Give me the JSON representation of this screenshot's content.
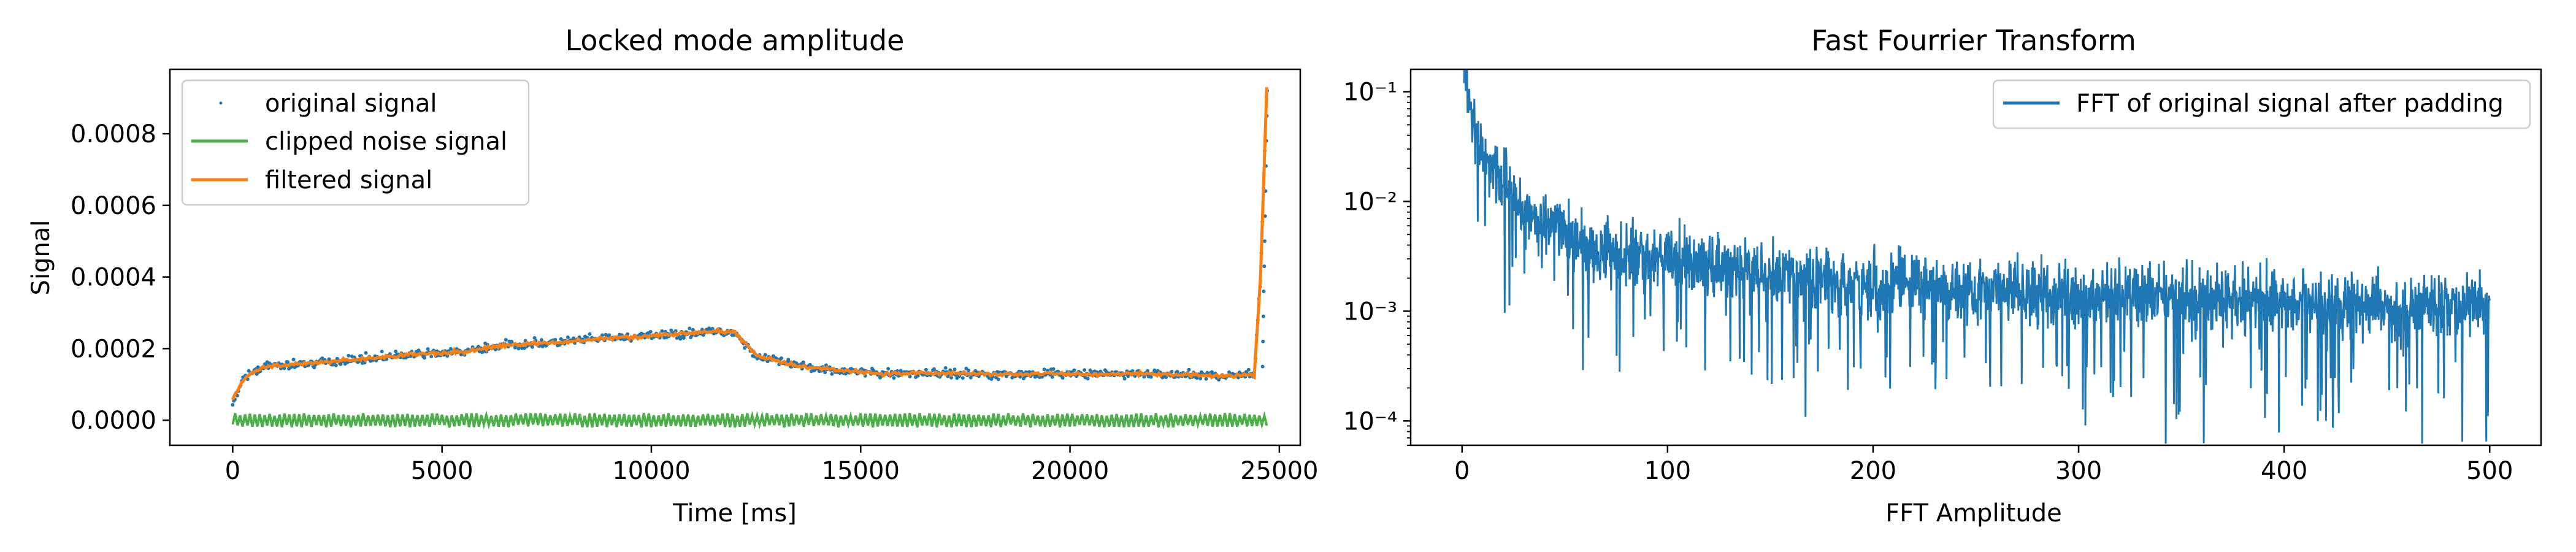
{
  "chart_data": [
    {
      "type": "line",
      "title": "Locked mode amplitude",
      "xlabel": "Time [ms]",
      "ylabel": "Signal",
      "xlim": [
        -1500,
        25500
      ],
      "ylim": [
        -7e-05,
        0.00098
      ],
      "xticks": [
        0,
        5000,
        10000,
        15000,
        20000,
        25000
      ],
      "xtick_labels": [
        "0",
        "5000",
        "10000",
        "15000",
        "20000",
        "25000"
      ],
      "yticks": [
        0.0,
        0.0002,
        0.0004,
        0.0006,
        0.0008
      ],
      "ytick_labels": [
        "0.0000",
        "0.0002",
        "0.0004",
        "0.0006",
        "0.0008"
      ],
      "grid": false,
      "legend": "top-left",
      "series": [
        {
          "name": "original signal",
          "style": "scatter",
          "color": "#1f77b4",
          "x": [
            0,
            300,
            700,
            1500,
            2500,
            3500,
            4500,
            5500,
            6500,
            7500,
            8500,
            9500,
            10500,
            11500,
            12000,
            12500,
            13500,
            14500,
            15500,
            16500,
            17500,
            18500,
            19500,
            20500,
            21500,
            22500,
            23500,
            24400,
            24550,
            24700
          ],
          "y": [
            5e-05,
            0.00012,
            0.00015,
            0.000155,
            0.000165,
            0.000175,
            0.000185,
            0.00019,
            0.00021,
            0.000215,
            0.000225,
            0.000232,
            0.00024,
            0.000248,
            0.000245,
            0.00018,
            0.00015,
            0.00014,
            0.00013,
            0.000132,
            0.00013,
            0.000128,
            0.00013,
            0.000128,
            0.00013,
            0.000128,
            0.000125,
            0.000125,
            0.0004,
            0.00093
          ]
        },
        {
          "name": "clipped noise signal",
          "style": "noise-band",
          "color": "#4daf4a",
          "x_range": [
            0,
            24700
          ],
          "y_range": [
            -2e-05,
            2e-05
          ]
        },
        {
          "name": "filtered signal",
          "style": "line",
          "color": "#ff7f0e",
          "x": [
            0,
            300,
            700,
            1500,
            2500,
            3500,
            4500,
            5500,
            6500,
            7500,
            8500,
            9500,
            10500,
            11500,
            12000,
            12500,
            13500,
            14500,
            15500,
            16500,
            17500,
            18500,
            19500,
            20500,
            21500,
            22500,
            23500,
            24400,
            24550,
            24700
          ],
          "y": [
            6e-05,
            0.00012,
            0.00015,
            0.000155,
            0.000165,
            0.000175,
            0.000185,
            0.00019,
            0.00021,
            0.000215,
            0.000225,
            0.000232,
            0.00024,
            0.000248,
            0.000245,
            0.00018,
            0.00015,
            0.00014,
            0.00013,
            0.000132,
            0.00013,
            0.000128,
            0.00013,
            0.000128,
            0.00013,
            0.000128,
            0.000125,
            0.000125,
            0.0004,
            0.00093
          ]
        }
      ]
    },
    {
      "type": "line",
      "title": "Fast Fourrier Transform",
      "xlabel": "FFT Amplitude",
      "ylabel": "",
      "xlim": [
        -25,
        525
      ],
      "ylim": [
        6e-05,
        0.16
      ],
      "yscale": "log",
      "xticks": [
        0,
        100,
        200,
        300,
        400,
        500
      ],
      "xtick_labels": [
        "0",
        "100",
        "200",
        "300",
        "400",
        "500"
      ],
      "yticks": [
        0.0001,
        0.001,
        0.01,
        0.1
      ],
      "ytick_labels": [
        "10⁻⁴",
        "10⁻³",
        "10⁻²",
        "10⁻¹"
      ],
      "grid": false,
      "legend": "top-right",
      "series": [
        {
          "name": "FFT of original signal after padding",
          "color": "#1f77b4",
          "x": [
            1,
            2,
            3,
            5,
            8,
            12,
            16,
            20,
            25,
            30,
            40,
            50,
            60,
            75,
            100,
            125,
            150,
            175,
            200,
            250,
            300,
            350,
            400,
            450,
            500
          ],
          "y": [
            0.16,
            0.12,
            0.08,
            0.05,
            0.035,
            0.025,
            0.02,
            0.015,
            0.012,
            0.008,
            0.006,
            0.005,
            0.004,
            0.0035,
            0.003,
            0.0025,
            0.0022,
            0.002,
            0.0018,
            0.0016,
            0.0014,
            0.0013,
            0.0012,
            0.0011,
            0.0011
          ]
        }
      ]
    }
  ]
}
